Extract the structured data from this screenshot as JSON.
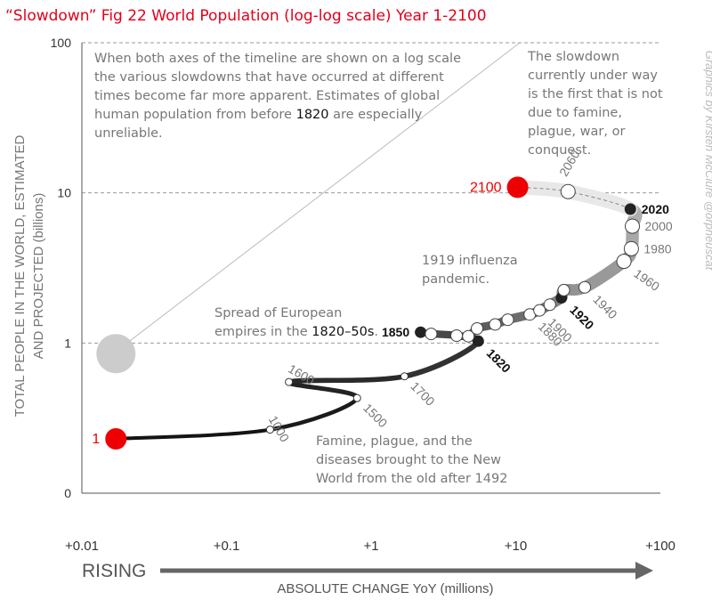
{
  "chart_data": {
    "type": "line",
    "title": "“Slowdown” Fig 22 World Population (log-log scale) Year 1-2100",
    "xlabel": "ABSOLUTE CHANGE YoY (millions)",
    "ylabel": "TOTAL PEOPLE IN THE WORLD, ESTIMATED AND PROJECTED (billions)",
    "rising_label": "RISING",
    "credit": "Graphics by Kirsten McClure @orpheuscat",
    "x_scale": "log",
    "y_scale": "log",
    "xlim": [
      0.01,
      100
    ],
    "ylim": [
      0.1,
      100
    ],
    "x_tick_labels": [
      {
        "v": 0.01,
        "label": "+0.01"
      },
      {
        "v": 0.1,
        "label": "+0.1"
      },
      {
        "v": 1,
        "label": "+1"
      },
      {
        "v": 10,
        "label": "+10"
      },
      {
        "v": 100,
        "label": "+100"
      }
    ],
    "y_tick_labels": [
      {
        "v": 100,
        "label": "100"
      },
      {
        "v": 10,
        "label": "10"
      },
      {
        "v": 1,
        "label": "1"
      },
      {
        "v": 0.1,
        "label": "0"
      }
    ],
    "legend_circle": {
      "x": 0.0172,
      "y": 0.85
    },
    "points": [
      {
        "year": "1",
        "x": 0.0172,
        "y": 0.23,
        "label": "1",
        "style": "red",
        "label_side": "left",
        "angle": 0
      },
      {
        "year": "1000",
        "x": 0.2,
        "y": 0.265,
        "label": "1000",
        "style": "small",
        "label_side": "above",
        "angle": 60
      },
      {
        "year": "1500",
        "x": 0.8,
        "y": 0.43,
        "label": "1500",
        "style": "small",
        "label_side": "below",
        "angle": 45
      },
      {
        "year": "1600",
        "x": 0.27,
        "y": 0.55,
        "label": "1600",
        "style": "small",
        "label_side": "above",
        "angle": 30
      },
      {
        "year": "1700",
        "x": 1.7,
        "y": 0.6,
        "label": "1700",
        "style": "small",
        "label_side": "below",
        "angle": 45
      },
      {
        "year": "1820",
        "x": 5.5,
        "y": 1.03,
        "label": "1820",
        "style": "black",
        "label_side": "below",
        "angle": 45
      },
      {
        "year": "1850",
        "x": 2.2,
        "y": 1.18,
        "label": "1850",
        "style": "black",
        "label_side": "left",
        "angle": 0
      },
      {
        "year": "",
        "x": 2.6,
        "y": 1.15,
        "label": "",
        "style": "white",
        "label_side": "",
        "angle": 0
      },
      {
        "year": "",
        "x": 3.9,
        "y": 1.12,
        "label": "",
        "style": "white",
        "label_side": "",
        "angle": 0
      },
      {
        "year": "",
        "x": 4.7,
        "y": 1.11,
        "label": "",
        "style": "white",
        "label_side": "",
        "angle": 0
      },
      {
        "year": "",
        "x": 5.4,
        "y": 1.25,
        "label": "",
        "style": "white",
        "label_side": "",
        "angle": 0
      },
      {
        "year": "",
        "x": 7.2,
        "y": 1.33,
        "label": "",
        "style": "white",
        "label_side": "",
        "angle": 0
      },
      {
        "year": "",
        "x": 8.8,
        "y": 1.43,
        "label": "",
        "style": "white",
        "label_side": "",
        "angle": 0
      },
      {
        "year": "1880",
        "x": 12.5,
        "y": 1.55,
        "label": "1880",
        "style": "white",
        "label_side": "below",
        "angle": 45
      },
      {
        "year": "1900",
        "x": 14.6,
        "y": 1.65,
        "label": "1900",
        "style": "white",
        "label_side": "below",
        "angle": 45
      },
      {
        "year": "",
        "x": 17.2,
        "y": 1.8,
        "label": "",
        "style": "white",
        "label_side": "",
        "angle": 0
      },
      {
        "year": "1920",
        "x": 20.7,
        "y": 2.0,
        "label": "1920",
        "style": "black",
        "label_side": "below",
        "angle": 45
      },
      {
        "year": "",
        "x": 21.5,
        "y": 2.25,
        "label": "",
        "style": "white",
        "label_side": "",
        "angle": 0
      },
      {
        "year": "1940",
        "x": 30.0,
        "y": 2.35,
        "label": "1940",
        "style": "white",
        "label_side": "below",
        "angle": 45
      },
      {
        "year": "1960",
        "x": 56.0,
        "y": 3.5,
        "label": "1960",
        "style": "white",
        "label_side": "below",
        "angle": 35
      },
      {
        "year": "1980",
        "x": 63.0,
        "y": 4.25,
        "label": "1980",
        "style": "white",
        "label_side": "right",
        "angle": 0
      },
      {
        "year": "2000",
        "x": 64.0,
        "y": 6.0,
        "label": "2000",
        "style": "white",
        "label_side": "right",
        "angle": 0
      },
      {
        "year": "2020",
        "x": 62.0,
        "y": 7.8,
        "label": "2020",
        "style": "black",
        "label_side": "right",
        "angle": 0
      },
      {
        "year": "2060",
        "x": 23.0,
        "y": 10.2,
        "label": "2060",
        "style": "white",
        "label_side": "above",
        "angle": -60
      },
      {
        "year": "2100",
        "x": 10.3,
        "y": 10.9,
        "label": "2100",
        "style": "red",
        "label_side": "left",
        "angle": 0
      }
    ],
    "annotations": [
      {
        "name": "annotation-intro",
        "highlight": "1820",
        "lines": [
          "When both axes of the timeline are shown on a log scale",
          "the various slowdowns that have occurred at different",
          "times become far more apparent. Estimates of global",
          "human population from before 1820 are especially",
          "unreliable."
        ]
      },
      {
        "name": "annotation-slowdown",
        "highlight": "",
        "lines": [
          "The slowdown",
          "currently under way",
          "is the first that is not",
          "due to famine,",
          "plague, war, or",
          "conquest."
        ]
      },
      {
        "name": "annotation-influenza",
        "highlight": "",
        "lines": [
          "1919 influenza",
          "pandemic."
        ]
      },
      {
        "name": "annotation-european",
        "highlight": "1820–50s",
        "lines": [
          "Spread of European",
          "empires in the 1820–50s."
        ]
      },
      {
        "name": "annotation-famine",
        "highlight": "",
        "lines": [
          "Famine, plague, and the",
          "diseases brought to the New",
          "World from the old after 1492"
        ]
      }
    ],
    "colors": {
      "red": "#ee0000",
      "title": "#e0001b",
      "text": "#777777",
      "axis": "#555555",
      "arrow": "#666666",
      "grid": "#999999",
      "legend": "#cccccc",
      "credit": "#bbbbbb"
    }
  }
}
